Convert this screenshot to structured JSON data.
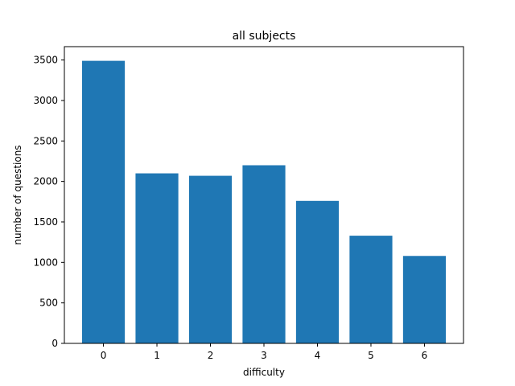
{
  "chart_data": {
    "type": "bar",
    "title": "all subjects",
    "xlabel": "difficulty",
    "ylabel": "number of questions",
    "categories": [
      "0",
      "1",
      "2",
      "3",
      "4",
      "5",
      "6"
    ],
    "values": [
      3490,
      2100,
      2070,
      2200,
      1760,
      1330,
      1080
    ],
    "yticks": [
      0,
      500,
      1000,
      1500,
      2000,
      2500,
      3000,
      3500
    ],
    "ylim": [
      0,
      3665
    ],
    "grid": false,
    "bar_color": "#1f77b4"
  }
}
